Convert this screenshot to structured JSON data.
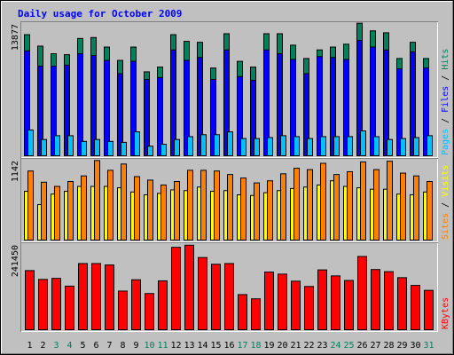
{
  "title": "Daily usage for October 2009",
  "colors": {
    "hits": "#00805c",
    "files": "#0000ff",
    "pages": "#00c0ff",
    "visits": "#ffff00",
    "sites": "#ff8000",
    "kbytes": "#ff0000",
    "title": "#0000ff",
    "weekday_label": "#000000",
    "weekend_label": "#00805c"
  },
  "chart_data": [
    {
      "type": "bar",
      "categories": [
        "1",
        "2",
        "3",
        "4",
        "5",
        "6",
        "7",
        "8",
        "9",
        "10",
        "11",
        "12",
        "13",
        "14",
        "15",
        "16",
        "17",
        "18",
        "19",
        "20",
        "21",
        "22",
        "23",
        "24",
        "25",
        "26",
        "27",
        "28",
        "29",
        "30",
        "31"
      ],
      "weekend_days": [
        "3",
        "4",
        "10",
        "11",
        "17",
        "18",
        "24",
        "25",
        "31"
      ],
      "ymax_label": "13877",
      "ylim": [
        0,
        13877
      ],
      "right_label": [
        "Pages",
        "Files",
        "Hits"
      ],
      "series": [
        {
          "name": "Hits",
          "values": [
            12800,
            11600,
            10800,
            10700,
            12400,
            12500,
            11500,
            10100,
            11500,
            8900,
            9400,
            12800,
            12100,
            12000,
            9300,
            12900,
            10000,
            9400,
            12900,
            12900,
            11700,
            10300,
            11200,
            11500,
            11800,
            14000,
            13200,
            13000,
            10300,
            12000,
            10300
          ]
        },
        {
          "name": "Files",
          "values": [
            11100,
            9500,
            9500,
            9600,
            10800,
            10600,
            10100,
            8700,
            10000,
            8100,
            8300,
            11200,
            10100,
            10400,
            8100,
            11200,
            8400,
            8000,
            11200,
            10800,
            10200,
            8700,
            10500,
            10400,
            10200,
            12200,
            11500,
            11200,
            9200,
            11000,
            9300
          ]
        },
        {
          "name": "Pages",
          "values": [
            2800,
            1800,
            2200,
            2200,
            1600,
            1800,
            1600,
            1500,
            2600,
            1100,
            1300,
            1800,
            2100,
            2300,
            2300,
            2600,
            1900,
            1900,
            2000,
            2200,
            2100,
            1900,
            2100,
            2100,
            2100,
            2700,
            2100,
            1800,
            1900,
            2000,
            2200
          ]
        }
      ]
    },
    {
      "type": "bar",
      "ymax_label": "1142",
      "ylim": [
        0,
        1142
      ],
      "right_label": [
        "Sites",
        "Visits"
      ],
      "series": [
        {
          "name": "Visits",
          "values": [
            710,
            520,
            670,
            710,
            780,
            780,
            780,
            760,
            700,
            660,
            680,
            730,
            720,
            770,
            710,
            720,
            660,
            650,
            690,
            720,
            750,
            770,
            800,
            860,
            780,
            760,
            740,
            740,
            670,
            660,
            700
          ]
        },
        {
          "name": "Sites",
          "values": [
            1000,
            840,
            780,
            850,
            930,
            1150,
            1010,
            1100,
            920,
            870,
            800,
            850,
            1010,
            1010,
            1000,
            950,
            900,
            830,
            860,
            960,
            1040,
            1020,
            1110,
            950,
            990,
            1130,
            1020,
            1140,
            970,
            930,
            850
          ]
        }
      ]
    },
    {
      "type": "bar",
      "ymax_label": "241450",
      "ylim": [
        0,
        241450
      ],
      "right_label": [
        "KBytes"
      ],
      "series": [
        {
          "name": "KBytes",
          "values": [
            170000,
            145000,
            148000,
            126000,
            190000,
            190000,
            186000,
            112000,
            144000,
            105000,
            141000,
            236000,
            242000,
            207000,
            188000,
            190000,
            102000,
            90000,
            166000,
            160000,
            140000,
            125000,
            172000,
            155000,
            142000,
            210000,
            173000,
            167000,
            150000,
            128000,
            114000
          ]
        }
      ]
    }
  ]
}
